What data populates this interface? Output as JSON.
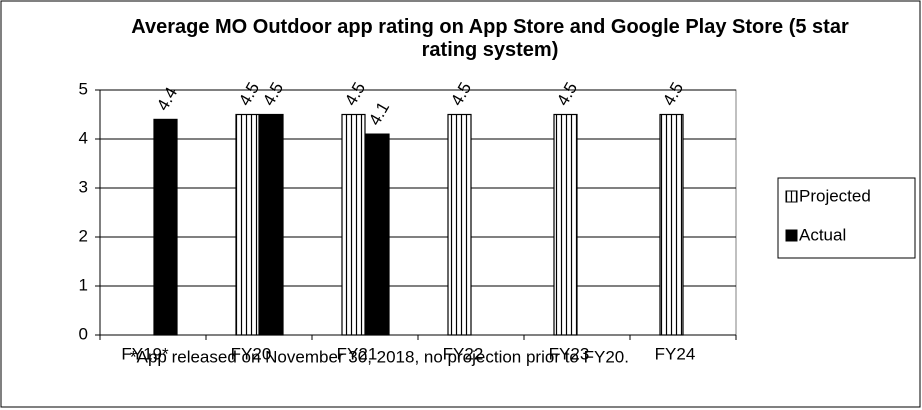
{
  "chart_data": {
    "type": "bar",
    "title": "Average MO Outdoor app rating on App Store and Google Play Store (5 star rating system)",
    "categories": [
      "FY19*",
      "FY20",
      "FY21",
      "FY22",
      "FY23",
      "FY24"
    ],
    "series": [
      {
        "name": "Projected",
        "color": "#ffffff",
        "pattern": "vertical-stripes",
        "values": [
          null,
          4.5,
          4.5,
          4.5,
          4.5,
          4.5
        ]
      },
      {
        "name": "Actual",
        "color": "#000000",
        "values": [
          4.4,
          4.5,
          4.1,
          null,
          null,
          null
        ]
      }
    ],
    "ylim": [
      0,
      5
    ],
    "yticks": [
      0,
      1,
      2,
      3,
      4,
      5
    ],
    "grid": true,
    "legend": "right",
    "annotations": [
      "*App released on November 30, 2018, no projection prior to FY20."
    ]
  }
}
